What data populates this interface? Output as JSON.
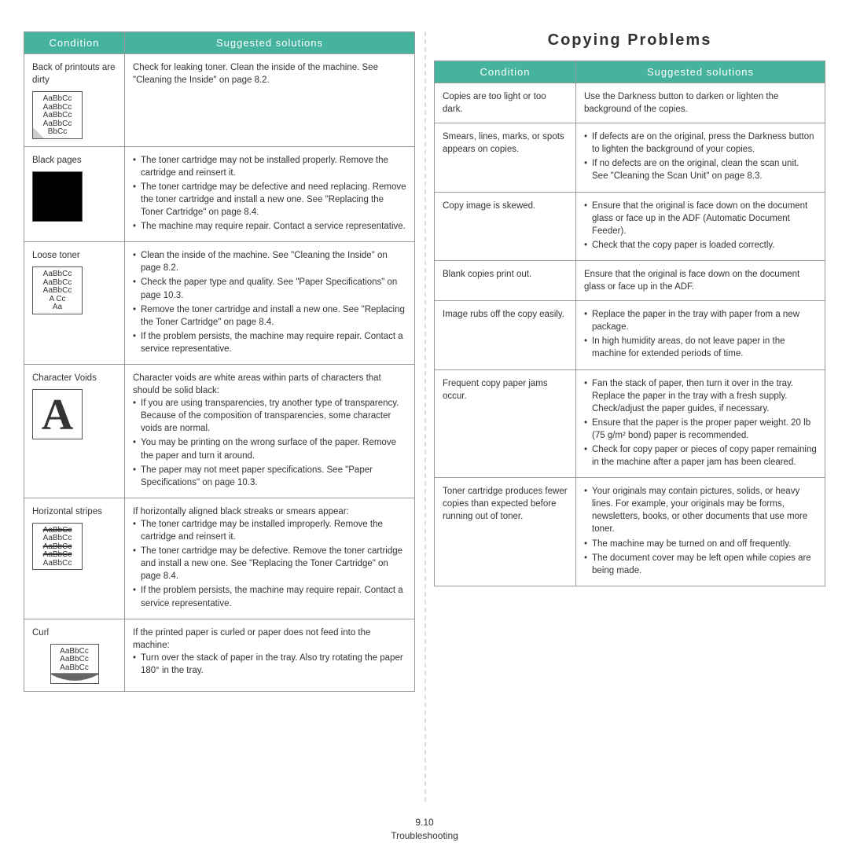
{
  "colors": {
    "header_bg": "#45b39d",
    "header_text": "#ffffff",
    "border": "#999999",
    "text": "#333333"
  },
  "left": {
    "headers": [
      "Condition",
      "Suggested solutions"
    ],
    "rows": [
      {
        "cond_label": "Back of printouts are dirty",
        "sol_html": "Check for leaking toner. Clean the inside of the machine. See \"Cleaning the Inside\" on page 8.2.",
        "sample": {
          "type": "dirty",
          "lines": [
            "AaBbCc",
            "AaBbCc",
            "AaBbCc",
            "AaBbCc",
            "BbCc"
          ]
        }
      },
      {
        "cond_label": "Black pages",
        "sol_items": [
          "The toner cartridge may not be installed properly. Remove the cartridge and reinsert it.",
          "The toner cartridge may be defective and need replacing. Remove the toner cartridge and install a new one. See \"Replacing the Toner Cartridge\" on page 8.4.",
          "The machine may require repair. Contact a service representative."
        ],
        "sample": {
          "type": "black"
        }
      },
      {
        "cond_label": "Loose toner",
        "sol_items": [
          "Clean the inside of the machine. See \"Cleaning the Inside\" on page 8.2.",
          "Check the paper type and quality. See \"Paper Specifications\" on page 10.3.",
          "Remove the toner cartridge and install a new one. See \"Replacing the Toner Cartridge\" on page 8.4.",
          "If the problem persists, the machine may require repair. Contact a service representative."
        ],
        "sample": {
          "type": "loose",
          "lines": [
            "AaBbCc",
            "AaBbCc",
            "AaBbCc",
            "A   Cc",
            "Aa"
          ]
        }
      },
      {
        "cond_label": "Character Voids",
        "sol_lead": "Character voids are white areas within parts of characters that should be solid black:",
        "sol_items": [
          "If you are using transparencies, try another type of transparency. Because of the composition of transparencies, some character voids are normal.",
          "You may be printing on the wrong surface of the paper. Remove the paper and turn it around.",
          "The paper may not meet paper specifications. See \"Paper Specifications\" on page 10.3."
        ],
        "sample": {
          "type": "A"
        }
      },
      {
        "cond_label": "Horizontal stripes",
        "sol_lead": "If horizontally aligned black streaks or smears appear:",
        "sol_items": [
          "The toner cartridge may be installed improperly. Remove the cartridge and reinsert it.",
          "The toner cartridge may be defective. Remove the toner cartridge and install a new one. See \"Replacing the Toner Cartridge\" on page 8.4.",
          "If the problem persists, the machine may require repair. Contact a service representative."
        ],
        "sample": {
          "type": "strike",
          "lines": [
            "AaBbCc",
            "AaBbCc",
            "AaBbCc",
            "AaBbCc",
            "AaBbCc"
          ],
          "strike_idx": [
            0,
            2,
            3
          ]
        }
      },
      {
        "cond_label": "Curl",
        "sol_lead": "If the printed paper is curled or paper does not feed into the machine:",
        "sol_items": [
          "Turn over the stack of paper in the tray. Also try rotating the paper 180° in the tray."
        ],
        "sample": {
          "type": "curl",
          "lines": [
            "AaBbCc",
            "AaBbCc",
            "AaBbCc"
          ]
        }
      }
    ]
  },
  "right": {
    "title": "Copying Problems",
    "headers": [
      "Condition",
      "Suggested solutions"
    ],
    "rows": [
      {
        "cond": "Copies are too light or too dark.",
        "sol_html": "Use the Darkness button to darken or lighten the background of the copies."
      },
      {
        "cond": "Smears, lines, marks, or spots appears on copies.",
        "sol_items": [
          "If defects are on the original, press the Darkness button to lighten the background of your copies.",
          "If no defects are on the original, clean the scan unit. See \"Cleaning the Scan Unit\" on page 8.3."
        ]
      },
      {
        "cond": "Copy image is skewed.",
        "sol_items": [
          "Ensure that the original is face down on the document glass or face up in the ADF (Automatic Document Feeder).",
          "Check that the copy paper is loaded correctly."
        ]
      },
      {
        "cond": "Blank copies print out.",
        "sol_html": "Ensure that the original is face down on the document glass or face up in the ADF."
      },
      {
        "cond": "Image rubs off the copy easily.",
        "sol_items": [
          "Replace the paper in the tray with paper from a new package.",
          "In high humidity areas, do not leave paper in the machine for extended periods of time."
        ]
      },
      {
        "cond": "Frequent copy paper jams occur.",
        "sol_items": [
          "Fan the stack of paper, then turn it over in the tray. Replace the paper in the tray with a fresh supply. Check/adjust the paper guides, if necessary.",
          "Ensure that the paper is the proper paper weight. 20 lb (75 g/m² bond) paper is recommended.",
          "Check for copy paper or pieces of copy paper remaining in the machine after a paper jam has been cleared."
        ]
      },
      {
        "cond": "Toner cartridge produces fewer copies than expected before running out of toner.",
        "sol_items": [
          "Your originals may contain pictures, solids, or heavy lines. For example, your originals may be forms, newsletters, books, or other documents that use more toner.",
          "The machine may be turned on and off frequently.",
          "The document cover may be left open while copies are being made."
        ]
      }
    ]
  },
  "footer": {
    "page_num": "9.10",
    "section": "Troubleshooting"
  }
}
